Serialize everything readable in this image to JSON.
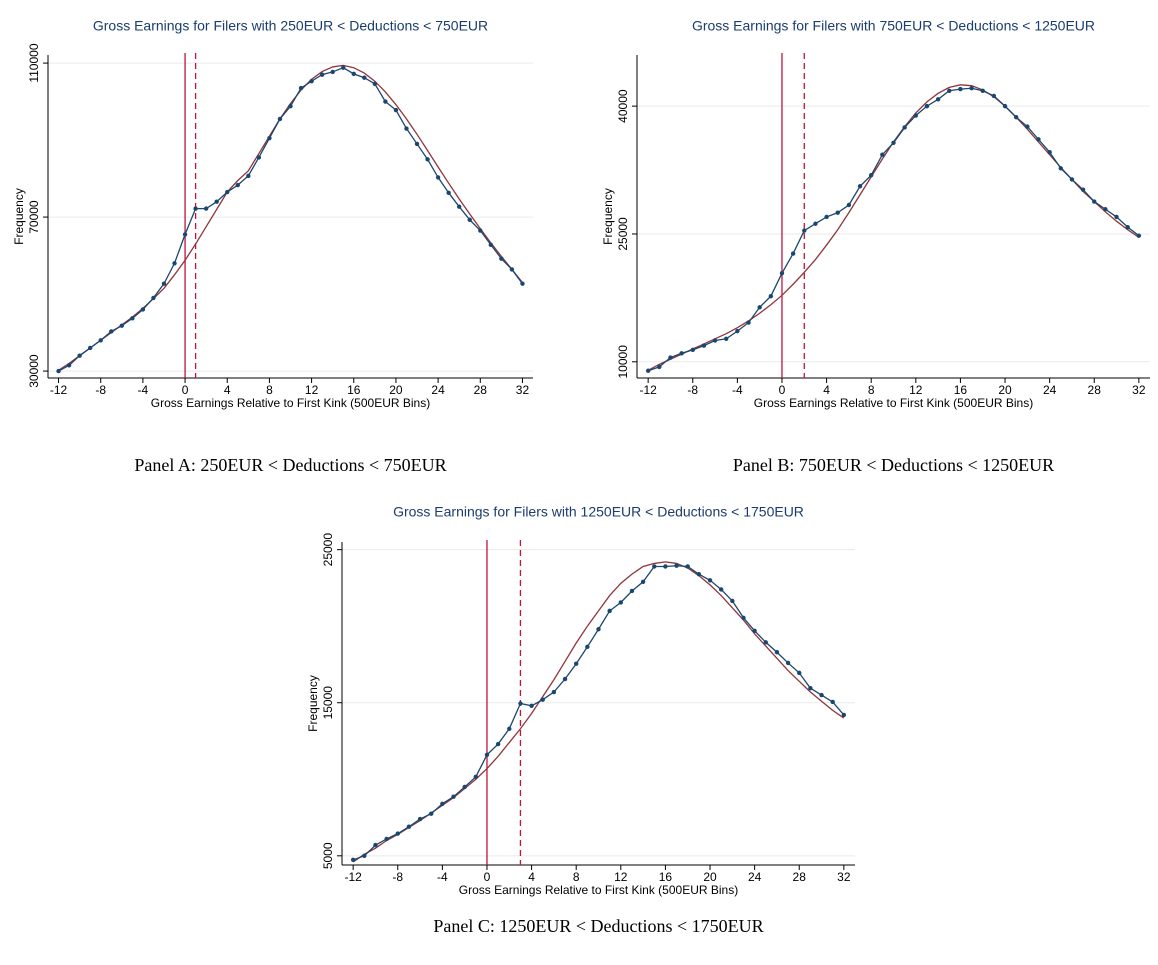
{
  "chart_data": [
    {
      "type": "line",
      "title": "Gross Earnings for Filers with 250EUR < Deductions < 750EUR",
      "x_label": "Gross Earnings Relative to First Kink (500EUR Bins)",
      "y_label": "Frequency",
      "caption": "Panel A: 250EUR < Deductions < 750EUR",
      "x": [
        -12,
        -11,
        -10,
        -9,
        -8,
        -7,
        -6,
        -5,
        -4,
        -3,
        -2,
        -1,
        0,
        1,
        2,
        3,
        4,
        5,
        6,
        7,
        8,
        9,
        10,
        11,
        12,
        13,
        14,
        15,
        16,
        17,
        18,
        19,
        20,
        21,
        22,
        23,
        24,
        25,
        26,
        27,
        28,
        29,
        30,
        31,
        32
      ],
      "series": [
        {
          "color": "#1a476f",
          "markers": true,
          "values": [
            30000,
            31500,
            34000,
            36000,
            38000,
            40300,
            41800,
            43700,
            46000,
            49000,
            52700,
            58000,
            65500,
            72200,
            72200,
            74000,
            76500,
            78300,
            80700,
            85500,
            90500,
            95500,
            98800,
            103500,
            105300,
            107000,
            107700,
            108800,
            107200,
            106200,
            104600,
            100000,
            97800,
            93000,
            89000,
            85000,
            80300,
            76300,
            72700,
            69300,
            66500,
            62800,
            59200,
            56400,
            52700
          ]
        },
        {
          "color": "#90353b",
          "markers": false,
          "values": [
            30200,
            32000,
            34000,
            36000,
            38000,
            40000,
            42000,
            44000,
            46300,
            48800,
            51500,
            55000,
            58800,
            63000,
            67500,
            72000,
            76500,
            79500,
            82000,
            86500,
            91000,
            95500,
            99500,
            103000,
            105800,
            107800,
            109000,
            109400,
            108800,
            107400,
            105300,
            102500,
            99200,
            95500,
            91500,
            87300,
            83000,
            78800,
            74700,
            70800,
            67000,
            63300,
            59800,
            56400,
            53000
          ]
        }
      ],
      "vlines": [
        0,
        1
      ],
      "vline_styles": [
        "solid",
        "dashed"
      ],
      "vline_color": "#c0143c",
      "xlim": [
        -13,
        33
      ],
      "xticks": [
        -12,
        -8,
        -4,
        0,
        4,
        8,
        12,
        16,
        20,
        24,
        28,
        32
      ],
      "ylim": [
        28200,
        112100
      ],
      "yticks": [
        30000,
        70000,
        110000
      ],
      "grid": true
    },
    {
      "type": "line",
      "title": "Gross Earnings for Filers with 750EUR < Deductions < 1250EUR",
      "x_label": "Gross Earnings Relative to First Kink (500EUR Bins)",
      "y_label": "Frequency",
      "caption": "Panel B: 750EUR < Deductions < 1250EUR",
      "x": [
        -12,
        -11,
        -10,
        -9,
        -8,
        -7,
        -6,
        -5,
        -4,
        -3,
        -2,
        -1,
        0,
        1,
        2,
        3,
        4,
        5,
        6,
        7,
        8,
        9,
        10,
        11,
        12,
        13,
        14,
        15,
        16,
        17,
        18,
        19,
        20,
        21,
        22,
        23,
        24,
        25,
        26,
        27,
        28,
        29,
        30,
        31,
        32
      ],
      "series": [
        {
          "color": "#1a476f",
          "markers": true,
          "values": [
            8950,
            9400,
            10500,
            11000,
            11400,
            11900,
            12500,
            12700,
            13600,
            14600,
            16400,
            17700,
            20400,
            22700,
            25400,
            26200,
            27000,
            27500,
            28400,
            30600,
            31900,
            34300,
            35700,
            37500,
            38900,
            40000,
            40800,
            41800,
            42000,
            42100,
            41800,
            41200,
            40000,
            38700,
            37600,
            36100,
            34600,
            32700,
            31400,
            30200,
            28800,
            27900,
            27000,
            25800,
            24800
          ]
        },
        {
          "color": "#90353b",
          "markers": false,
          "values": [
            9000,
            9700,
            10300,
            10900,
            11500,
            12100,
            12700,
            13300,
            14000,
            14800,
            15700,
            16700,
            17800,
            19100,
            20500,
            22000,
            23700,
            25500,
            27500,
            29600,
            31700,
            33800,
            35800,
            37600,
            39200,
            40500,
            41500,
            42200,
            42500,
            42400,
            41900,
            41100,
            40000,
            38700,
            37300,
            35800,
            34300,
            32800,
            31400,
            30000,
            28800,
            27600,
            26500,
            25500,
            24600
          ]
        }
      ],
      "vlines": [
        0,
        2
      ],
      "vline_styles": [
        "solid",
        "dashed"
      ],
      "vline_color": "#c0143c",
      "xlim": [
        -13,
        33
      ],
      "xticks": [
        -12,
        -8,
        -4,
        0,
        4,
        8,
        12,
        16,
        20,
        24,
        28,
        32
      ],
      "ylim": [
        8100,
        46000
      ],
      "yticks": [
        10000,
        25000,
        40000
      ],
      "grid": true
    },
    {
      "type": "line",
      "title": "Gross Earnings for Filers with 1250EUR < Deductions < 1750EUR",
      "x_label": "Gross Earnings Relative to First Kink (500EUR Bins)",
      "y_label": "Frequency",
      "caption": "Panel C: 1250EUR < Deductions < 1750EUR",
      "x": [
        -12,
        -11,
        -10,
        -9,
        -8,
        -7,
        -6,
        -5,
        -4,
        -3,
        -2,
        -1,
        0,
        1,
        2,
        3,
        4,
        5,
        6,
        7,
        8,
        9,
        10,
        11,
        12,
        13,
        14,
        15,
        16,
        17,
        18,
        19,
        20,
        21,
        22,
        23,
        24,
        25,
        26,
        27,
        28,
        29,
        30,
        31,
        32
      ],
      "series": [
        {
          "color": "#1a476f",
          "markers": true,
          "values": [
            4740,
            5000,
            5700,
            6100,
            6450,
            6900,
            7400,
            7750,
            8400,
            8860,
            9500,
            10160,
            11600,
            12300,
            13300,
            14950,
            14800,
            15200,
            15700,
            16550,
            17550,
            18650,
            19800,
            21000,
            21550,
            22300,
            22900,
            23900,
            23900,
            23950,
            23900,
            23400,
            23000,
            22400,
            21650,
            20550,
            19700,
            18950,
            18300,
            17600,
            16950,
            15950,
            15500,
            15050,
            14200
          ]
        },
        {
          "color": "#90353b",
          "markers": false,
          "values": [
            4600,
            5100,
            5500,
            6000,
            6400,
            6850,
            7300,
            7800,
            8300,
            8800,
            9400,
            10000,
            10700,
            11500,
            12400,
            13300,
            14300,
            15400,
            16500,
            17700,
            18900,
            20000,
            21000,
            22000,
            22800,
            23400,
            23900,
            24100,
            24200,
            24100,
            23800,
            23300,
            22700,
            22000,
            21200,
            20400,
            19500,
            18700,
            17900,
            17100,
            16400,
            15700,
            15100,
            14500,
            14000
          ]
        }
      ],
      "vlines": [
        0,
        3
      ],
      "vline_styles": [
        "solid",
        "dashed"
      ],
      "vline_color": "#c0143c",
      "xlim": [
        -13,
        33
      ],
      "xticks": [
        -12,
        -8,
        -4,
        0,
        4,
        8,
        12,
        16,
        20,
        24,
        28,
        32
      ],
      "ylim": [
        4400,
        25500
      ],
      "yticks": [
        5000,
        15000,
        25000
      ],
      "grid": true
    }
  ]
}
